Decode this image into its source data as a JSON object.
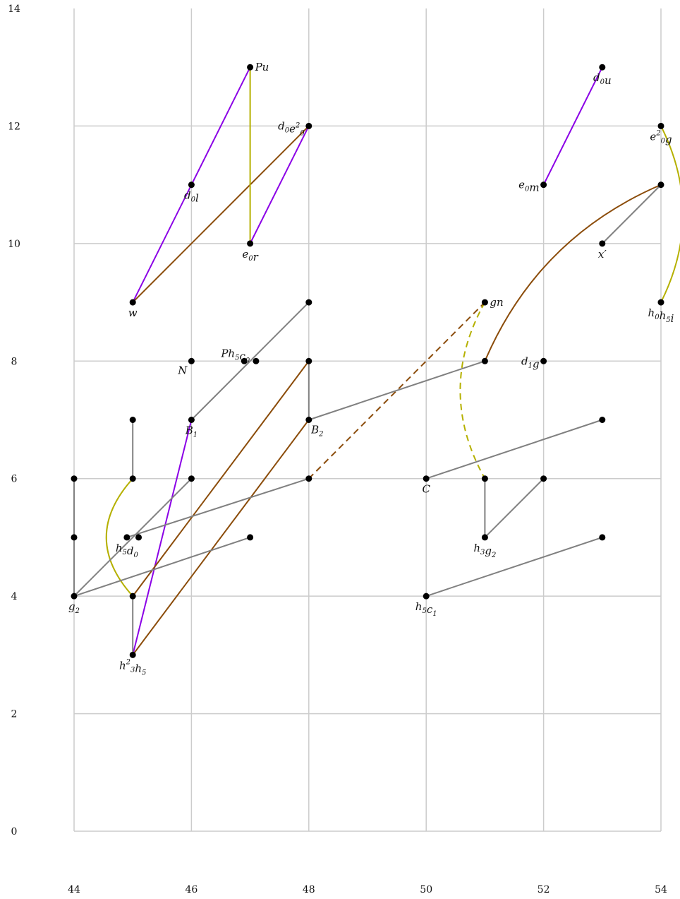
{
  "chart_data": {
    "type": "scatter",
    "xlim": [
      44,
      54
    ],
    "ylim": [
      0,
      14
    ],
    "grid": true,
    "x_ticks": [
      44,
      46,
      48,
      50,
      52,
      54
    ],
    "y_ticks": [
      0,
      2,
      4,
      6,
      8,
      10,
      12,
      14
    ],
    "colors": {
      "gray": "#808080",
      "purple": "#8b00e6",
      "brown": "#8b4c0a",
      "olive": "#b5b000",
      "dot": "#000000"
    },
    "points": [
      {
        "id": "Pu",
        "x": 47,
        "y": 13
      },
      {
        "id": "d0u",
        "x": 53,
        "y": 13
      },
      {
        "id": "d0e0sq",
        "x": 48,
        "y": 12
      },
      {
        "id": "e0sqg",
        "x": 54,
        "y": 12
      },
      {
        "id": "d0l",
        "x": 46,
        "y": 11
      },
      {
        "id": "e0m",
        "x": 52,
        "y": 11
      },
      {
        "id": "p54_11",
        "x": 54,
        "y": 11
      },
      {
        "id": "e0r",
        "x": 47,
        "y": 10
      },
      {
        "id": "xprime",
        "x": 53,
        "y": 10
      },
      {
        "id": "w",
        "x": 45,
        "y": 9
      },
      {
        "id": "p48_9",
        "x": 48,
        "y": 9
      },
      {
        "id": "gn",
        "x": 51,
        "y": 9
      },
      {
        "id": "h0h5i",
        "x": 54,
        "y": 9
      },
      {
        "id": "N",
        "x": 46,
        "y": 8
      },
      {
        "id": "Ph5c0",
        "x": 46.9,
        "y": 8
      },
      {
        "id": "p47b_8",
        "x": 47.1,
        "y": 8
      },
      {
        "id": "p48_8",
        "x": 48,
        "y": 8
      },
      {
        "id": "p51_8",
        "x": 51,
        "y": 8
      },
      {
        "id": "d1g",
        "x": 52,
        "y": 8
      },
      {
        "id": "p45_7",
        "x": 45,
        "y": 7
      },
      {
        "id": "B1",
        "x": 46,
        "y": 7
      },
      {
        "id": "B2",
        "x": 48,
        "y": 7
      },
      {
        "id": "p53_7",
        "x": 53,
        "y": 7
      },
      {
        "id": "p44_6",
        "x": 44,
        "y": 6
      },
      {
        "id": "p45_6",
        "x": 45,
        "y": 6
      },
      {
        "id": "p46_6",
        "x": 46,
        "y": 6
      },
      {
        "id": "p48_6",
        "x": 48,
        "y": 6
      },
      {
        "id": "C",
        "x": 50,
        "y": 6
      },
      {
        "id": "p51_6",
        "x": 51,
        "y": 6
      },
      {
        "id": "p52_6",
        "x": 52,
        "y": 6
      },
      {
        "id": "p44_5",
        "x": 44,
        "y": 5
      },
      {
        "id": "h5d0",
        "x": 44.9,
        "y": 5
      },
      {
        "id": "p45b_5",
        "x": 45.1,
        "y": 5
      },
      {
        "id": "p47_5",
        "x": 47,
        "y": 5
      },
      {
        "id": "h3g2",
        "x": 51,
        "y": 5
      },
      {
        "id": "p53_5",
        "x": 53,
        "y": 5
      },
      {
        "id": "g2",
        "x": 44,
        "y": 4
      },
      {
        "id": "p45_4",
        "x": 45,
        "y": 4
      },
      {
        "id": "h5c1",
        "x": 50,
        "y": 4
      },
      {
        "id": "h3sqh5",
        "x": 45,
        "y": 3
      }
    ],
    "labels": [
      {
        "point": "Pu",
        "base": "Pu",
        "sub": "",
        "sup": "",
        "rest": "",
        "pos": "right"
      },
      {
        "point": "d0u",
        "base": "d",
        "sub": "0",
        "sup": "",
        "rest": "u",
        "pos": "below"
      },
      {
        "point": "d0e0sq",
        "base": "d",
        "sub": "0",
        "sup": "",
        "rest": "e",
        "sub2": "0",
        "sup2": "2",
        "pos": "left"
      },
      {
        "point": "e0sqg",
        "base": "e",
        "sub": "0",
        "sup": "2",
        "rest": "g",
        "pos": "below"
      },
      {
        "point": "d0l",
        "base": "d",
        "sub": "0",
        "sup": "",
        "rest": "l",
        "pos": "below"
      },
      {
        "point": "e0m",
        "base": "e",
        "sub": "0",
        "sup": "",
        "rest": "m",
        "pos": "left"
      },
      {
        "point": "e0r",
        "base": "e",
        "sub": "0",
        "sup": "",
        "rest": "r",
        "pos": "below"
      },
      {
        "point": "xprime",
        "base": "x′",
        "sub": "",
        "sup": "",
        "rest": "",
        "pos": "below"
      },
      {
        "point": "w",
        "base": "w",
        "sub": "",
        "sup": "",
        "rest": "",
        "pos": "below"
      },
      {
        "point": "gn",
        "base": "gn",
        "sub": "",
        "sup": "",
        "rest": "",
        "pos": "right"
      },
      {
        "point": "h0h5i",
        "base": "h",
        "sub": "0",
        "sup": "",
        "rest": "h",
        "sub2": "5",
        "sup2": "",
        "rest2": "i",
        "pos": "below"
      },
      {
        "point": "N",
        "base": "N",
        "sub": "",
        "sup": "",
        "rest": "",
        "pos": "below-left"
      },
      {
        "point": "Ph5c0",
        "base": "Ph",
        "sub": "5",
        "sup": "",
        "rest": "c",
        "sub2": "0",
        "sup2": "",
        "pos": "above-left"
      },
      {
        "point": "d1g",
        "base": "d",
        "sub": "1",
        "sup": "",
        "rest": "g",
        "pos": "left"
      },
      {
        "point": "B1",
        "base": "B",
        "sub": "1",
        "sup": "",
        "rest": "",
        "pos": "below"
      },
      {
        "point": "B2",
        "base": "B",
        "sub": "2",
        "sup": "",
        "rest": "",
        "pos": "below-right"
      },
      {
        "point": "C",
        "base": "C",
        "sub": "",
        "sup": "",
        "rest": "",
        "pos": "below"
      },
      {
        "point": "h5d0",
        "base": "h",
        "sub": "5",
        "sup": "",
        "rest": "d",
        "sub2": "0",
        "sup2": "",
        "pos": "below"
      },
      {
        "point": "h3g2",
        "base": "h",
        "sub": "3",
        "sup": "",
        "rest": "g",
        "sub2": "2",
        "sup2": "",
        "pos": "below"
      },
      {
        "point": "g2",
        "base": "g",
        "sub": "2",
        "sup": "",
        "rest": "",
        "pos": "below"
      },
      {
        "point": "h5c1",
        "base": "h",
        "sub": "5",
        "sup": "",
        "rest": "c",
        "sub2": "1",
        "sup2": "",
        "pos": "below"
      },
      {
        "point": "h3sqh5",
        "base": "h",
        "sub": "3",
        "sup": "2",
        "rest": "h",
        "sub2": "5",
        "sup2": "",
        "pos": "below"
      }
    ],
    "edges": [
      {
        "from": "w",
        "to": "Pu",
        "color": "purple"
      },
      {
        "from": "e0r",
        "to": "d0e0sq",
        "color": "purple"
      },
      {
        "from": "e0m",
        "to": "d0u",
        "color": "purple"
      },
      {
        "from": "h3sqh5",
        "to": "B1",
        "color": "purple"
      },
      {
        "from": "w",
        "to": "d0e0sq",
        "color": "brown"
      },
      {
        "from": "p45_4",
        "to": "p48_8",
        "color": "brown"
      },
      {
        "from": "h3sqh5",
        "to": "B2",
        "color": "brown"
      },
      {
        "from": "p48_6",
        "to": "gn",
        "color": "brown",
        "dashed": true
      },
      {
        "from": "p51_8",
        "to": "p54_11",
        "color": "brown",
        "curve": -0.2
      },
      {
        "from": "Pu",
        "to": "e0r",
        "color": "olive"
      },
      {
        "from": "p45_6",
        "to": "p45_4",
        "color": "olive",
        "curve": 0.45
      },
      {
        "from": "gn",
        "to": "p51_6",
        "color": "olive",
        "dashed": true,
        "curve": 0.28
      },
      {
        "from": "e0sqg",
        "to": "h0h5i",
        "color": "olive",
        "curve": -0.25
      },
      {
        "from": "p44_6",
        "to": "g2",
        "color": "gray"
      },
      {
        "from": "g2",
        "to": "p46_6",
        "color": "gray"
      },
      {
        "from": "g2",
        "to": "p47_5",
        "color": "gray"
      },
      {
        "from": "p45_7",
        "to": "p45_6",
        "color": "gray"
      },
      {
        "from": "h5d0",
        "to": "p48_6",
        "color": "gray"
      },
      {
        "from": "p45_4",
        "to": "h3sqh5",
        "color": "gray"
      },
      {
        "from": "B1",
        "to": "p48_9",
        "color": "gray"
      },
      {
        "from": "p48_8",
        "to": "B2",
        "color": "gray"
      },
      {
        "from": "B2",
        "to": "p51_8",
        "color": "gray"
      },
      {
        "from": "C",
        "to": "p53_7",
        "color": "gray"
      },
      {
        "from": "p51_6",
        "to": "h3g2",
        "color": "gray"
      },
      {
        "from": "h3g2",
        "to": "p52_6",
        "color": "gray"
      },
      {
        "from": "h5c1",
        "to": "p53_5",
        "color": "gray"
      },
      {
        "from": "xprime",
        "to": "p54_11",
        "color": "gray"
      }
    ]
  }
}
